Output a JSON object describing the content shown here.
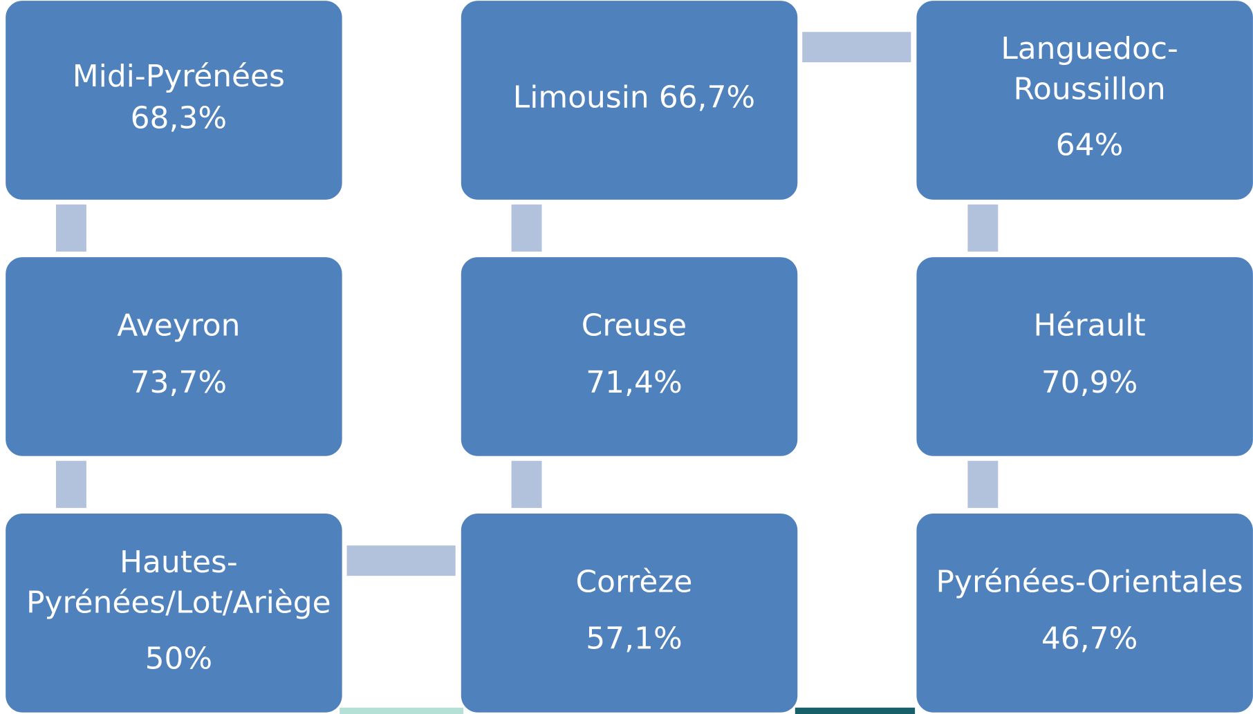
{
  "nodes": [
    {
      "lines": [
        "Midi-Pyrénées",
        "68,3%"
      ]
    },
    {
      "lines": [
        "Limousin 66,7%"
      ]
    },
    {
      "lines": [
        "Languedoc-",
        "Roussillon",
        "64%"
      ]
    },
    {
      "lines": [
        "Aveyron",
        "73,7%"
      ]
    },
    {
      "lines": [
        "Creuse",
        "71,4%"
      ]
    },
    {
      "lines": [
        "Hérault",
        "70,9%"
      ]
    },
    {
      "lines": [
        "Hautes-",
        "Pyrénées/Lot/Ariège",
        "50%"
      ]
    },
    {
      "lines": [
        "Corrèze",
        "57,1%"
      ]
    },
    {
      "lines": [
        "Pyrénées-Orientales",
        "46,7%"
      ]
    }
  ]
}
